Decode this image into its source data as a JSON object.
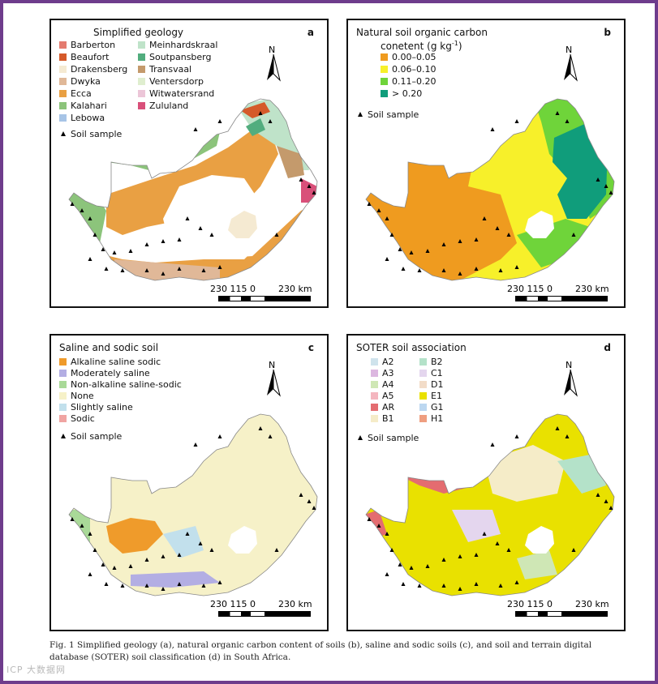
{
  "panels": {
    "a": {
      "letter": "a",
      "title": "Simplified geology",
      "legend_col1": [
        {
          "label": "Barberton",
          "color": "#e47b6f"
        },
        {
          "label": "Beaufort",
          "color": "#d55a2a"
        },
        {
          "label": "Drakensberg",
          "color": "#f5ead2"
        },
        {
          "label": "Dwyka",
          "color": "#e0b898"
        },
        {
          "label": "Ecca",
          "color": "#e9a043"
        },
        {
          "label": "Kalahari",
          "color": "#8cc47b"
        },
        {
          "label": "Lebowa",
          "color": "#a7c4e6"
        }
      ],
      "legend_col2": [
        {
          "label": "Meinhardskraal",
          "color": "#bfe3c9"
        },
        {
          "label": "Soutpansberg",
          "color": "#52ad7e"
        },
        {
          "label": "Transvaal",
          "color": "#c49a6c"
        },
        {
          "label": "Ventersdorp",
          "color": "#dfeecf"
        },
        {
          "label": "Witwatersrand",
          "color": "#ecc6d8"
        },
        {
          "label": "Zululand",
          "color": "#d9507a"
        }
      ]
    },
    "b": {
      "letter": "b",
      "title_line1": "Natural soil organic carbon",
      "title_line2": "conetent (g kg",
      "title_sup": "-1",
      "title_end": ")",
      "legend": [
        {
          "label": "0.00–0.05",
          "color": "#ef9b1f"
        },
        {
          "label": "0.06–0.10",
          "color": "#f7f02a"
        },
        {
          "label": "0.11–0.20",
          "color": "#6fd43a"
        },
        {
          "label": "> 0.20",
          "color": "#109d7b"
        }
      ]
    },
    "c": {
      "letter": "c",
      "title": "Saline and sodic soil",
      "legend": [
        {
          "label": "Alkaline saline sodic",
          "color": "#ef9b2b"
        },
        {
          "label": "Moderately saline",
          "color": "#b3aee3"
        },
        {
          "label": "Non-alkaline saline-sodic",
          "color": "#a9d998"
        },
        {
          "label": "None",
          "color": "#f6f1c8"
        },
        {
          "label": "Slightly saline",
          "color": "#c2e0ec"
        },
        {
          "label": "Sodic",
          "color": "#f0a4a2"
        }
      ]
    },
    "d": {
      "letter": "d",
      "title": "SOTER soil association",
      "legend_col1": [
        {
          "label": "A2",
          "color": "#cfe3ec"
        },
        {
          "label": "A3",
          "color": "#dcb7e0"
        },
        {
          "label": "A4",
          "color": "#cfe7b5"
        },
        {
          "label": "A5",
          "color": "#f4b6bf"
        },
        {
          "label": "AR",
          "color": "#e46c70"
        },
        {
          "label": "B1",
          "color": "#f5ecc8"
        }
      ],
      "legend_col2": [
        {
          "label": "B2",
          "color": "#b4e2c9"
        },
        {
          "label": "C1",
          "color": "#e4d6ee"
        },
        {
          "label": "D1",
          "color": "#f2dcc8"
        },
        {
          "label": "E1",
          "color": "#e9e100"
        },
        {
          "label": "G1",
          "color": "#bcd7f0"
        },
        {
          "label": "H1",
          "color": "#ef9e80"
        }
      ]
    }
  },
  "common": {
    "soil_sample": "Soil sample",
    "north": "N",
    "scale_left": "230 115  0",
    "scale_right": "230 km"
  },
  "caption": {
    "line1": "Fig. 1   Simplified geology (a), natural organic carbon content of soils (b), saline and sodic soils (c), and soil and terrain digital",
    "line2": "database (SOTER) soil classification (d) in South Africa."
  }
}
